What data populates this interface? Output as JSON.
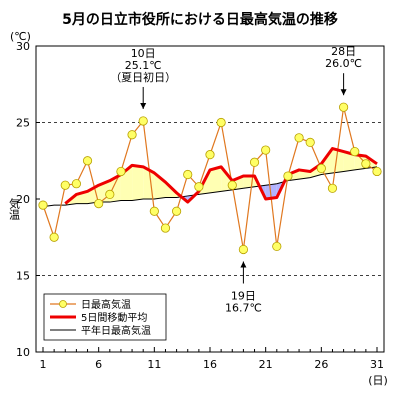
{
  "chart_data": {
    "type": "line",
    "title": "5月の日立市役所における日最高気温の推移",
    "ylabel": "気温",
    "yunit": "(℃)",
    "xunit": "(日)",
    "ylim": [
      10,
      30
    ],
    "yticks": [
      10,
      15,
      20,
      25,
      30
    ],
    "xlim": [
      1,
      31
    ],
    "xticks": [
      1,
      6,
      11,
      16,
      21,
      26,
      31
    ],
    "grid": "dashed at 15 and 25",
    "legend_placement": "bottom-left",
    "x": [
      1,
      2,
      3,
      4,
      5,
      6,
      7,
      8,
      9,
      10,
      11,
      12,
      13,
      14,
      15,
      16,
      17,
      18,
      19,
      20,
      21,
      22,
      23,
      24,
      25,
      26,
      27,
      28,
      29,
      30,
      31
    ],
    "series": [
      {
        "name": "日最高気温",
        "color": "#e07820",
        "marker_color": "#ffff66",
        "values": [
          19.6,
          17.5,
          20.9,
          21.0,
          22.5,
          19.7,
          20.3,
          21.8,
          24.2,
          25.1,
          19.2,
          18.1,
          19.2,
          21.6,
          20.8,
          22.9,
          25.0,
          20.9,
          16.7,
          22.4,
          23.2,
          16.9,
          21.5,
          24.0,
          23.7,
          22.0,
          20.7,
          26.0,
          23.1,
          22.3,
          21.8
        ]
      },
      {
        "name": "5日間移動平均",
        "color": "#ee0000",
        "values": [
          null,
          null,
          19.7,
          20.3,
          20.5,
          20.9,
          21.2,
          21.6,
          22.2,
          22.1,
          21.7,
          21.1,
          20.4,
          19.8,
          20.5,
          21.9,
          22.1,
          21.2,
          21.5,
          21.5,
          20.0,
          20.1,
          21.6,
          21.9,
          21.8,
          22.3,
          23.3,
          23.1,
          22.9,
          22.8,
          22.3
        ]
      },
      {
        "name": "平年日最高気温",
        "color": "#000000",
        "values": [
          19.5,
          19.6,
          19.6,
          19.7,
          19.7,
          19.8,
          19.8,
          19.9,
          19.9,
          20.0,
          20.0,
          20.1,
          20.1,
          20.2,
          20.3,
          20.4,
          20.5,
          20.6,
          20.7,
          20.8,
          20.9,
          21.0,
          21.2,
          21.3,
          21.4,
          21.6,
          21.7,
          21.8,
          21.9,
          22.0,
          22.1
        ]
      }
    ],
    "annotations": [
      {
        "day": 10,
        "lines": [
          "10日",
          "25.1℃",
          "（夏日初日）"
        ],
        "side": "above"
      },
      {
        "day": 28,
        "lines": [
          "28日",
          "26.0℃"
        ],
        "side": "above"
      },
      {
        "day": 19,
        "lines": [
          "19日",
          "16.7℃"
        ],
        "side": "below"
      }
    ]
  }
}
